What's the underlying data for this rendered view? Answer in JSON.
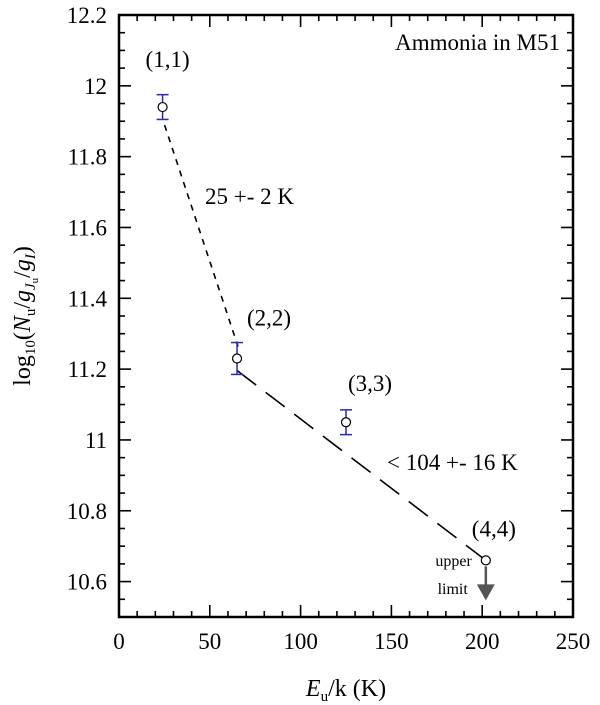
{
  "chart_data": {
    "type": "scatter",
    "title": "Ammonia in M51",
    "xlabel": {
      "main": "E",
      "sub": "u",
      "rest": "/k (K)"
    },
    "ylabel": "log10(Nu/gJu/gI)",
    "ylabel_parts": {
      "pre": "log",
      "pre_sub": "10",
      "open": "(",
      "n": "N",
      "n_sub": "u",
      "slash1": "/",
      "g1": "g",
      "g1_sub": "J",
      "g1_subsub": "u",
      "slash2": "/",
      "g2": "g",
      "g2_sub": "I",
      "close": ")"
    },
    "xlim": [
      0,
      250
    ],
    "ylim": [
      10.5,
      12.2
    ],
    "xticks": [
      0,
      50,
      100,
      150,
      200,
      250
    ],
    "yticks": [
      10.6,
      10.8,
      11,
      11.2,
      11.4,
      11.6,
      11.8,
      12,
      12.2
    ],
    "ytick_labels": [
      "10.6",
      "10.8",
      "11",
      "11.2",
      "11.4",
      "11.6",
      "11.8",
      "12",
      "12.2"
    ],
    "points": [
      {
        "label": "(1,1)",
        "x": 24,
        "y": 11.94,
        "err": 0.035
      },
      {
        "label": "(2,2)",
        "x": 65,
        "y": 11.23,
        "err": 0.045
      },
      {
        "label": "(3,3)",
        "x": 125,
        "y": 11.05,
        "err": 0.035
      },
      {
        "label": "(4,4)",
        "x": 202,
        "y": 10.66,
        "err": null,
        "upper_limit": true
      }
    ],
    "fits": [
      {
        "label": "25 +- 2 K",
        "x": [
          24,
          65
        ],
        "y": [
          11.94,
          11.23
        ],
        "style": "short-dash"
      },
      {
        "label": "< 104 +- 16 K",
        "x": [
          65,
          202
        ],
        "y": [
          11.23,
          10.66
        ],
        "style": "long-dash"
      }
    ],
    "upper_limit_label": [
      "upper",
      "limit"
    ],
    "grid": false,
    "colors": {
      "errorbar": "#2b2bb0",
      "marker": "#000000",
      "arrow": "#555555",
      "axes": "#000000"
    }
  }
}
